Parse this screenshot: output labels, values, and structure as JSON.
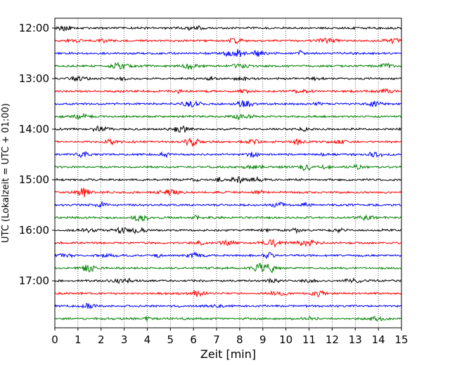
{
  "chart_data": {
    "type": "line",
    "title": "",
    "xlabel": "Zeit  [min]",
    "ylabel": "UTC (Lokalzeit = UTC + 01:00)",
    "xlim": [
      0,
      15
    ],
    "x_ticks": [
      0,
      1,
      2,
      3,
      4,
      5,
      6,
      7,
      8,
      9,
      10,
      11,
      12,
      13,
      14,
      15
    ],
    "y_tick_labels": [
      "12:00",
      "13:00",
      "14:00",
      "15:00",
      "16:00",
      "17:00"
    ],
    "grid": "vertical dotted at each minute",
    "trace_interval_minutes": 15,
    "series": [
      {
        "start": "12:00",
        "color": "#000000"
      },
      {
        "start": "12:15",
        "color": "#ff0000"
      },
      {
        "start": "12:30",
        "color": "#0000ff"
      },
      {
        "start": "12:45",
        "color": "#008000"
      },
      {
        "start": "13:00",
        "color": "#000000"
      },
      {
        "start": "13:15",
        "color": "#ff0000"
      },
      {
        "start": "13:30",
        "color": "#0000ff"
      },
      {
        "start": "13:45",
        "color": "#008000"
      },
      {
        "start": "14:00",
        "color": "#000000"
      },
      {
        "start": "14:15",
        "color": "#ff0000"
      },
      {
        "start": "14:30",
        "color": "#0000ff"
      },
      {
        "start": "14:45",
        "color": "#008000"
      },
      {
        "start": "15:00",
        "color": "#000000"
      },
      {
        "start": "15:15",
        "color": "#ff0000"
      },
      {
        "start": "15:30",
        "color": "#0000ff"
      },
      {
        "start": "15:45",
        "color": "#008000"
      },
      {
        "start": "16:00",
        "color": "#000000"
      },
      {
        "start": "16:15",
        "color": "#ff0000"
      },
      {
        "start": "16:30",
        "color": "#0000ff"
      },
      {
        "start": "16:45",
        "color": "#008000"
      },
      {
        "start": "17:00",
        "color": "#000000"
      },
      {
        "start": "17:15",
        "color": "#ff0000"
      },
      {
        "start": "17:30",
        "color": "#0000ff"
      },
      {
        "start": "17:45",
        "color": "#008000"
      }
    ]
  }
}
